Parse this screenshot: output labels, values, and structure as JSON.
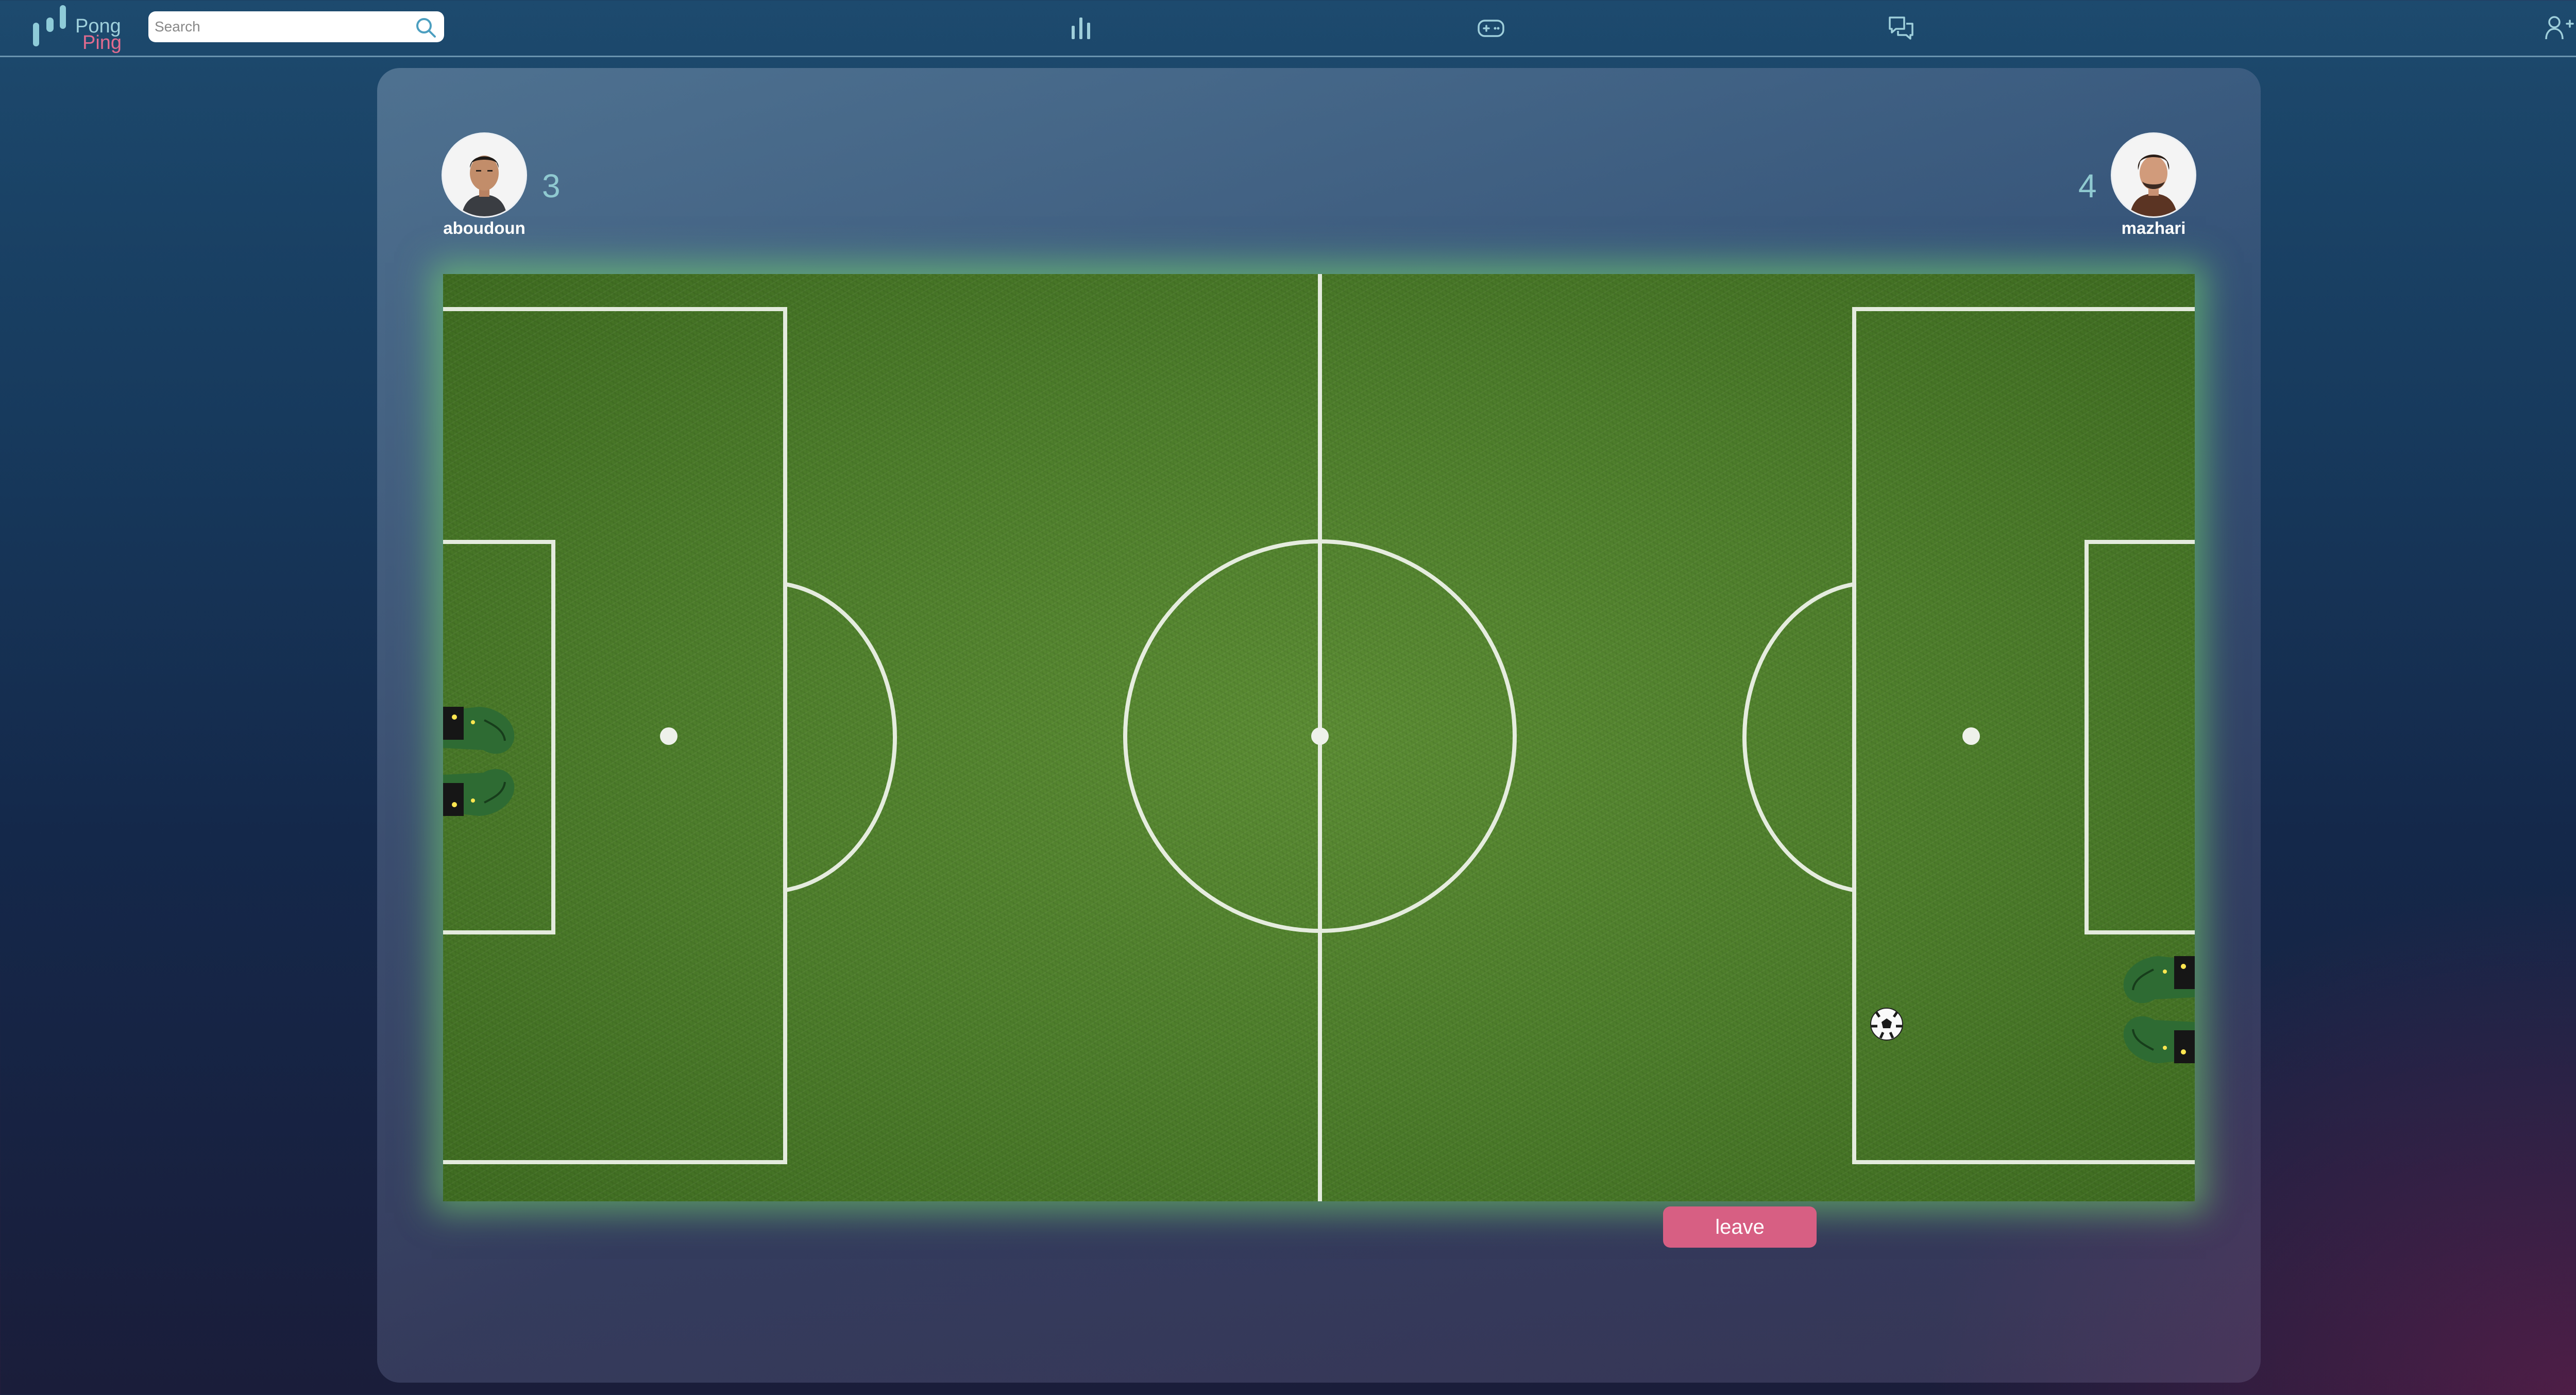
{
  "app": {
    "logo_top": "Pong",
    "logo_bottom": "Ping"
  },
  "search": {
    "placeholder": "Search",
    "value": ""
  },
  "nav": [
    {
      "name": "leaderboard",
      "icon": "bar-chart-icon"
    },
    {
      "name": "game",
      "icon": "gamepad-icon"
    },
    {
      "name": "chat",
      "icon": "chat-bubbles-icon"
    }
  ],
  "header_right": {
    "add_friend_icon": "user-plus-icon",
    "profile_icon": "user-avatar-icon"
  },
  "match": {
    "left_player": {
      "name": "aboudoun",
      "score": "3"
    },
    "right_player": {
      "name": "mazhari",
      "score": "4"
    }
  },
  "actions": {
    "leave_label": "leave"
  },
  "colors": {
    "accent_pink": "#d75f83",
    "score_teal": "#8fc9d0",
    "field_green": "#4d7d2b",
    "field_glow": "#78dc6e"
  }
}
